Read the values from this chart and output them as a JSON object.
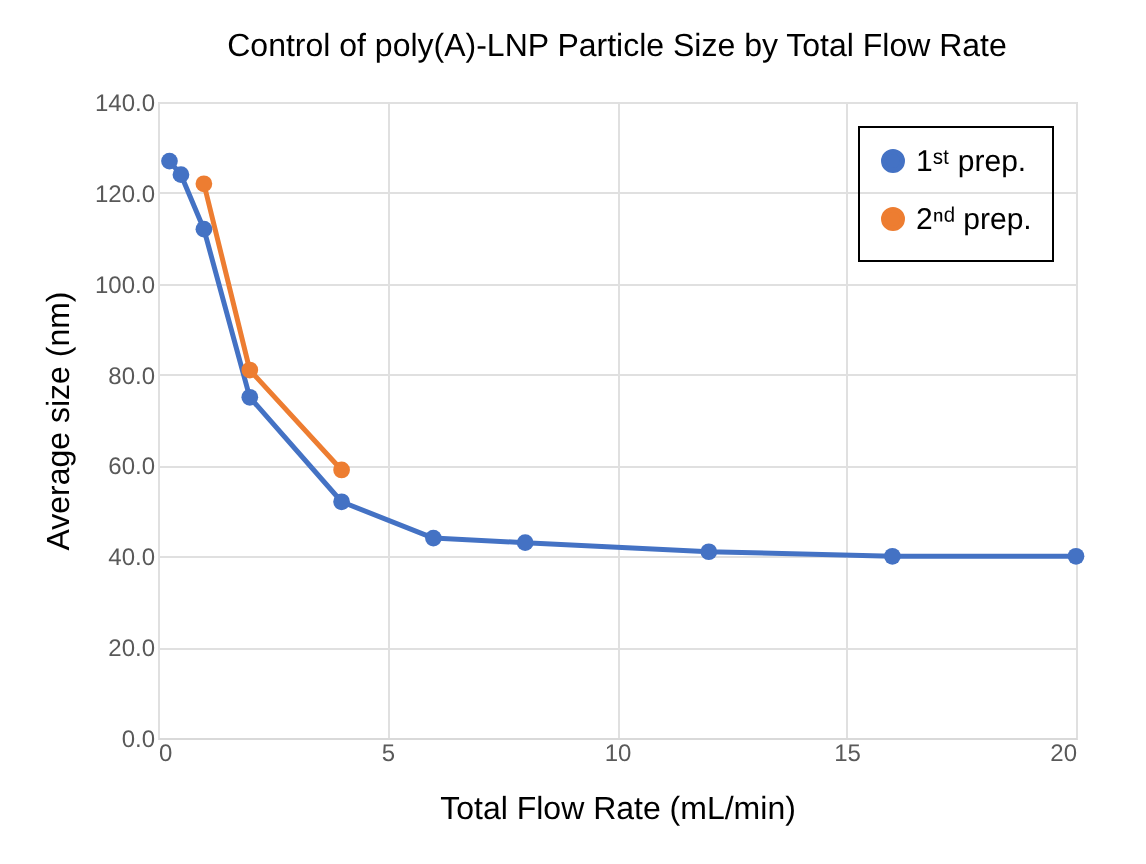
{
  "chart_data": {
    "type": "line",
    "title": "Control of poly(A)-LNP Particle Size by Total Flow Rate",
    "xlabel": "Total Flow Rate (mL/min)",
    "ylabel": "Average size (nm)",
    "series": [
      {
        "name": "1ˢᵗ prep.",
        "color": "#4472c4",
        "x": [
          0.25,
          0.5,
          1,
          2,
          4,
          6,
          8,
          12,
          16,
          20
        ],
        "values": [
          127,
          124,
          112,
          75,
          52,
          44,
          43,
          41,
          40,
          40
        ]
      },
      {
        "name": "2ⁿᵈ prep.",
        "color": "#ed7d31",
        "x": [
          1,
          2,
          4
        ],
        "values": [
          122,
          81,
          59
        ]
      }
    ],
    "xlim": [
      0,
      20
    ],
    "xticks": [
      0,
      5,
      10,
      15,
      20
    ],
    "ylim": [
      0,
      140
    ],
    "yticks": [
      {
        "value": 0,
        "label": "0.0"
      },
      {
        "value": 20,
        "label": "20.0"
      },
      {
        "value": 40,
        "label": "40.0"
      },
      {
        "value": 60,
        "label": "60.0"
      },
      {
        "value": 80,
        "label": "80.0"
      },
      {
        "value": 100,
        "label": "100.0"
      },
      {
        "value": 120,
        "label": "120.0"
      },
      {
        "value": 140,
        "label": "140.0"
      }
    ],
    "grid": true,
    "legend": "top right",
    "marker": "circle",
    "line_style": "solid"
  }
}
